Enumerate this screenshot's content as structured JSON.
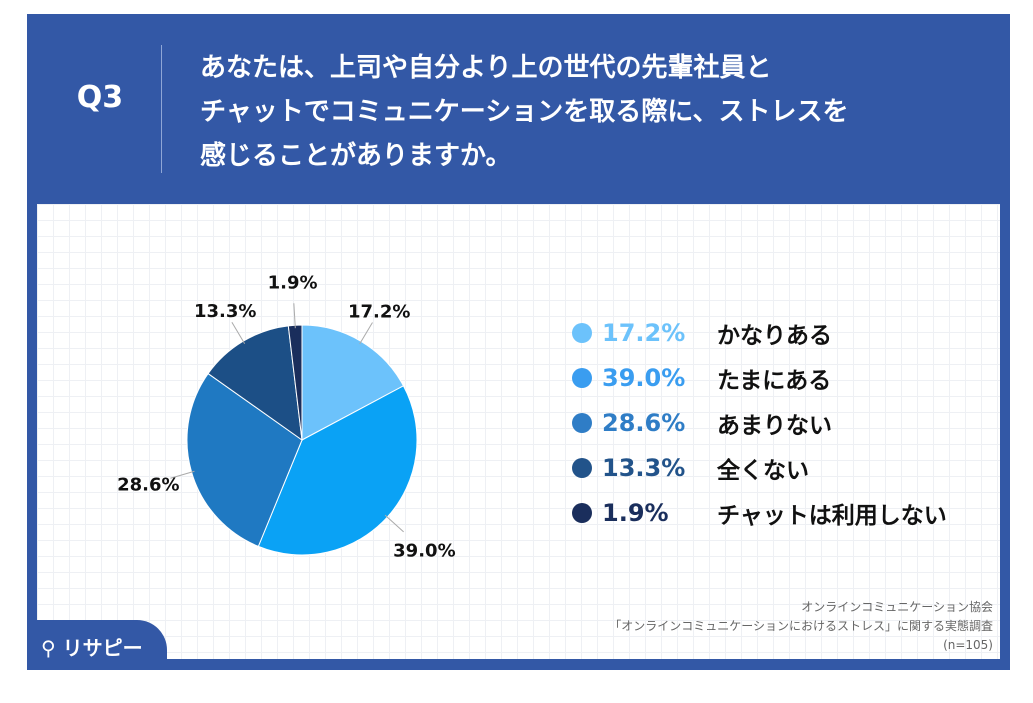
{
  "header": {
    "q": "Q3",
    "title": "あなたは、上司や自分より上の世代の先輩社員と\nチャットでコミュニケーションを取る際に、ストレスを\n感じることがありますか。"
  },
  "chart_data": {
    "type": "pie",
    "categories": [
      "かなりある",
      "たまにある",
      "あまりない",
      "全くない",
      "チャットは利用しない"
    ],
    "values": [
      17.2,
      39.0,
      28.6,
      13.3,
      1.9
    ],
    "labels": [
      "17.2%",
      "39.0%",
      "28.6%",
      "13.3%",
      "1.9%"
    ],
    "colors": [
      "#6cc2fb",
      "#0aa2f5",
      "#1f79c2",
      "#1c4f86",
      "#1a2e5c"
    ],
    "legend_colors": [
      "#6cc2fb",
      "#3a9df0",
      "#2f7dc6",
      "#22538a",
      "#1a2e5c"
    ],
    "legend_position": "right"
  },
  "source": {
    "line1": "オンラインコミュニケーション協会",
    "line2": "「オンラインコミュニケーションにおけるストレス」に関する実態調査",
    "line3": "(n=105)"
  },
  "logo": "リサピー"
}
